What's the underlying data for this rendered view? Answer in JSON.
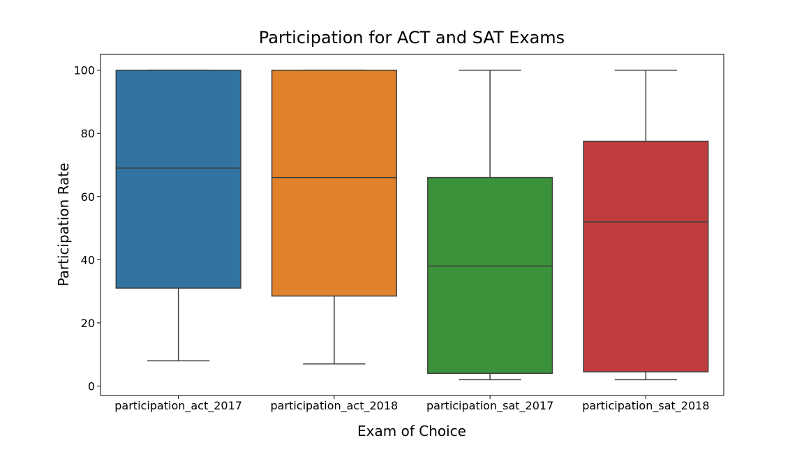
{
  "chart_data": {
    "type": "box",
    "title": "Participation for ACT and SAT Exams",
    "xlabel": "Exam of Choice",
    "ylabel": "Participation Rate",
    "ylim": [
      -3,
      105
    ],
    "yticks": [
      0,
      20,
      40,
      60,
      80,
      100
    ],
    "grid": false,
    "legend": "none",
    "categories": [
      "participation_act_2017",
      "participation_act_2018",
      "participation_sat_2017",
      "participation_sat_2018"
    ],
    "boxes": [
      {
        "category": "participation_act_2017",
        "min": 8,
        "q1": 31,
        "median": 69,
        "q3": 100,
        "max": 100,
        "color": "#3274a1"
      },
      {
        "category": "participation_act_2018",
        "min": 7,
        "q1": 28.5,
        "median": 66,
        "q3": 100,
        "max": 100,
        "color": "#e1812c"
      },
      {
        "category": "participation_sat_2017",
        "min": 2,
        "q1": 4,
        "median": 38,
        "q3": 66,
        "max": 100,
        "color": "#3a923a"
      },
      {
        "category": "participation_sat_2018",
        "min": 2,
        "q1": 4.5,
        "median": 52,
        "q3": 77.5,
        "max": 100,
        "color": "#c03d3e"
      }
    ]
  }
}
